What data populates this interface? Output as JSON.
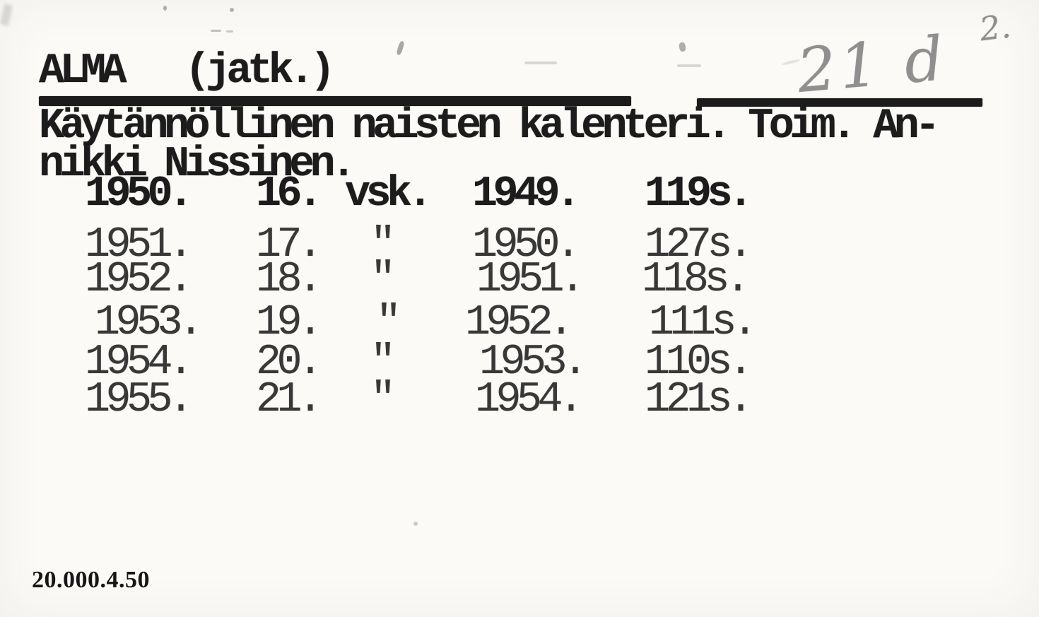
{
  "card": {
    "page_number": "2.",
    "classmark_handwritten": "21 d",
    "title": "ALMA   (jatk.)",
    "body_line1": "Käytännöllinen naisten kalenteri. Toim. An-",
    "body_line2": "nikki Nissinen.",
    "print_code": "20.000.4.50"
  },
  "table": {
    "rows": [
      [
        "1950.",
        "16.",
        "vsk.",
        "1949.",
        "119s."
      ],
      [
        "1951.",
        "17.",
        "\"",
        "1950.",
        "127s."
      ],
      [
        "1952.",
        "18.",
        "\"",
        "1951.",
        "118s."
      ],
      [
        "1953.",
        "19.",
        "\"",
        "1952.",
        "111s."
      ],
      [
        "1954.",
        "20.",
        "\"",
        "1953.",
        "110s."
      ],
      [
        "1955.",
        "21.",
        "\"",
        "1954.",
        "121s."
      ]
    ]
  },
  "colors": {
    "ink": "#1c1c1c",
    "ink-light": "#383838",
    "pencil": "#8f8f8f",
    "paper": "#fbfaf6"
  }
}
